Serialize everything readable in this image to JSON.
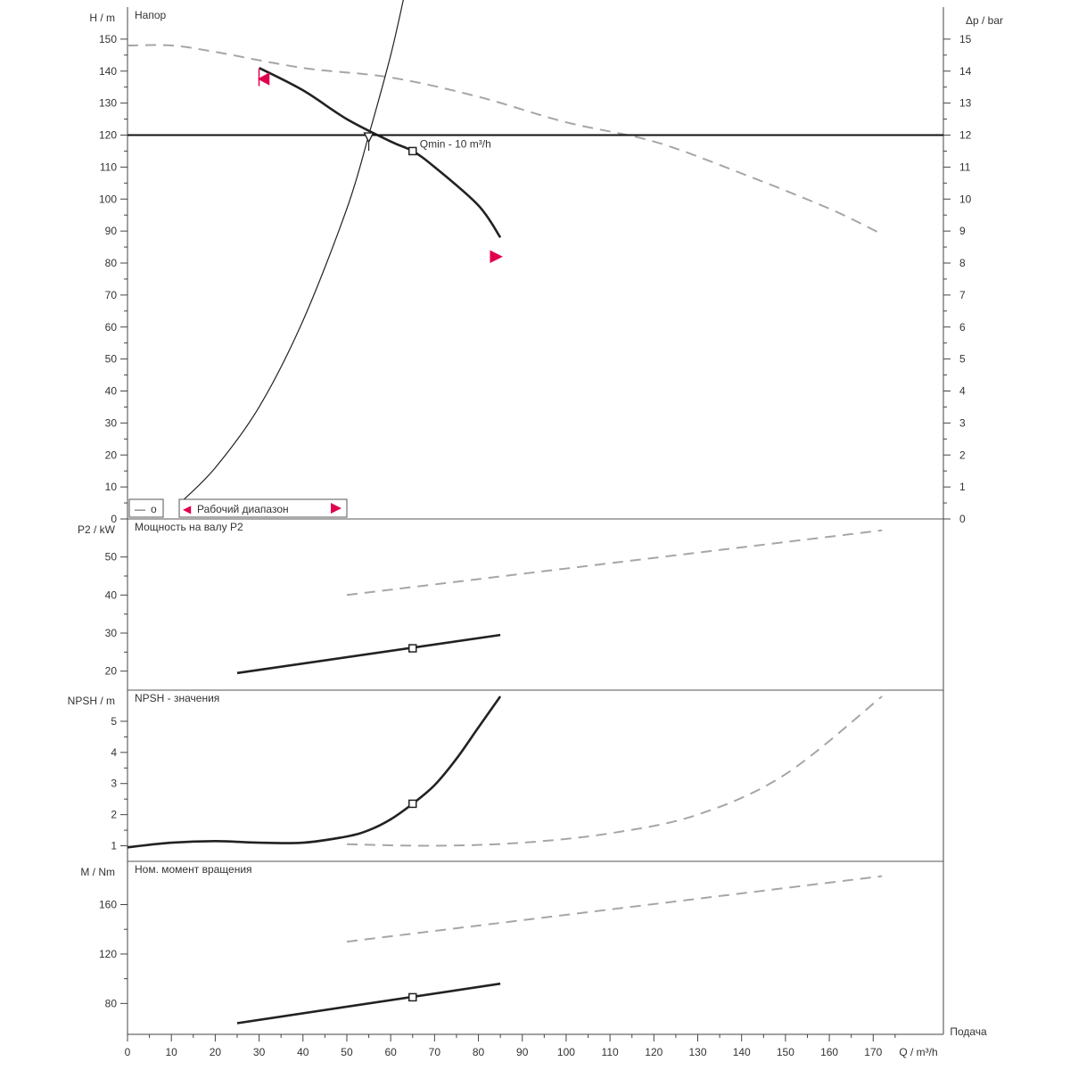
{
  "chart_data": [
    {
      "id": "head",
      "type": "line",
      "title": "Напор",
      "ylabel": "H / m",
      "y2label": "Δp / bar",
      "ylim": [
        0,
        160
      ],
      "yticks": [
        0,
        10,
        20,
        30,
        40,
        50,
        60,
        70,
        80,
        90,
        100,
        110,
        120,
        130,
        140,
        150
      ],
      "y2lim": [
        0,
        16
      ],
      "y2ticks": [
        0,
        1,
        2,
        3,
        4,
        5,
        6,
        7,
        8,
        9,
        10,
        11,
        12,
        13,
        14,
        15
      ],
      "series": [
        {
          "id": "pump_curve",
          "style": "solid-bold",
          "x": [
            30,
            40,
            50,
            60,
            65,
            70,
            80,
            85
          ],
          "y": [
            141,
            134,
            125,
            118,
            115,
            110,
            98,
            88
          ]
        },
        {
          "id": "max_curve",
          "style": "dashed",
          "x": [
            0,
            10,
            20,
            40,
            60,
            80,
            100,
            120,
            140,
            160,
            172
          ],
          "y": [
            148,
            148,
            146,
            141,
            138,
            132,
            124,
            118,
            108,
            97,
            89
          ]
        },
        {
          "id": "system_curve",
          "style": "thin",
          "x": [
            12,
            20,
            30,
            40,
            50,
            55,
            60,
            63
          ],
          "y": [
            5,
            16,
            35,
            62,
            97,
            120,
            145,
            163
          ]
        }
      ],
      "required_head": 120,
      "limit_markers": [
        {
          "x": 31,
          "y": 137,
          "color": "#e0004d"
        },
        {
          "x": 84,
          "y": 82,
          "color": "#e0004d"
        }
      ],
      "intersection": {
        "x": 55,
        "y": 119
      },
      "operating_point": {
        "x": 65,
        "y": 115,
        "label": "Qmin - 10 m³/h"
      },
      "legend": [
        {
          "symbol": "—",
          "text": "o"
        },
        {
          "symbol": "◀",
          "text": "Рабочий диапазон"
        }
      ]
    },
    {
      "id": "power",
      "type": "line",
      "title": "Мощность на валу P2",
      "ylabel": "P2 / kW",
      "ylim": [
        15,
        60
      ],
      "yticks": [
        20,
        30,
        40,
        50
      ],
      "series": [
        {
          "id": "p2",
          "style": "solid-bold",
          "x": [
            25,
            85
          ],
          "y": [
            19.5,
            29.5
          ]
        },
        {
          "id": "p2_max",
          "style": "dashed",
          "x": [
            50,
            172
          ],
          "y": [
            40,
            57
          ]
        }
      ],
      "operating_point": {
        "x": 65,
        "y": 26
      }
    },
    {
      "id": "npsh",
      "type": "line",
      "title": "NPSH - значения",
      "ylabel": "NPSH / m",
      "ylim": [
        0.5,
        6
      ],
      "yticks": [
        1,
        2,
        3,
        4,
        5
      ],
      "series": [
        {
          "id": "npsh",
          "style": "solid-bold",
          "x": [
            0,
            10,
            20,
            30,
            40,
            50,
            55,
            60,
            65,
            70,
            75,
            80,
            85
          ],
          "y": [
            0.95,
            1.1,
            1.15,
            1.1,
            1.1,
            1.3,
            1.5,
            1.85,
            2.35,
            2.95,
            3.8,
            4.8,
            5.8
          ]
        },
        {
          "id": "npsh_max",
          "style": "dashed",
          "x": [
            50,
            70,
            90,
            110,
            130,
            150,
            172
          ],
          "y": [
            1.05,
            1.0,
            1.1,
            1.4,
            2.0,
            3.3,
            5.8
          ]
        }
      ],
      "operating_point": {
        "x": 65,
        "y": 2.35
      }
    },
    {
      "id": "torque",
      "type": "line",
      "title": "Ном. момент вращения",
      "ylabel": "M / Nm",
      "ylim": [
        55,
        195
      ],
      "yticks": [
        80,
        120,
        160
      ],
      "series": [
        {
          "id": "m",
          "style": "solid-bold",
          "x": [
            25,
            85
          ],
          "y": [
            64,
            96
          ]
        },
        {
          "id": "m_max",
          "style": "dashed",
          "x": [
            50,
            172
          ],
          "y": [
            130,
            183
          ]
        }
      ],
      "operating_point": {
        "x": 65,
        "y": 85
      }
    }
  ],
  "x_axis": {
    "label": "Q / m³/h",
    "caption": "Подача",
    "xlim": [
      0,
      186
    ],
    "ticks": [
      0,
      10,
      20,
      30,
      40,
      50,
      60,
      70,
      80,
      90,
      100,
      110,
      120,
      130,
      140,
      150,
      160,
      170
    ]
  },
  "colors": {
    "curve": "#222222",
    "dashed": "#a6a6a6",
    "accent": "#e0004d",
    "axis": "#444444"
  }
}
